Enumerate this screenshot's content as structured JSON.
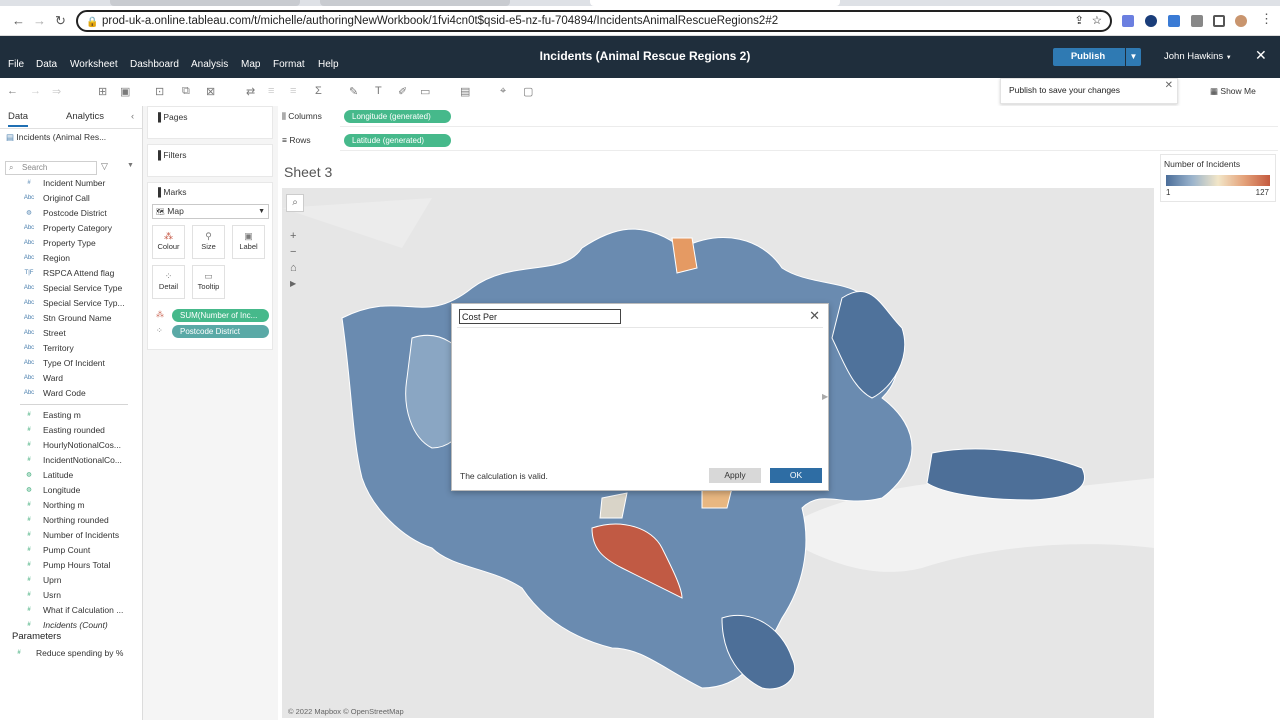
{
  "browser": {
    "url": "prod-uk-a.online.tableau.com/t/michelle/authoringNewWorkbook/1fvi4cn0t$qsid-e5-nz-fu-704894/IncidentsAnimalRescueRegions2#2"
  },
  "app": {
    "menus": [
      "File",
      "Data",
      "Worksheet",
      "Dashboard",
      "Analysis",
      "Map",
      "Format",
      "Help"
    ],
    "title": "Incidents (Animal Rescue Regions 2)",
    "publish_label": "Publish",
    "user_name": "John Hawkins",
    "publish_tooltip": "Publish to save your changes",
    "show_me_label": "Show Me"
  },
  "data_pane": {
    "tab_data": "Data",
    "tab_analytics": "Analytics",
    "datasource": "Incidents (Animal Res...",
    "search_placeholder": "Search",
    "dimensions": [
      {
        "icon": "#",
        "name": "Incident Number"
      },
      {
        "icon": "Abc",
        "name": "Originof Call"
      },
      {
        "icon": "globe",
        "name": "Postcode District"
      },
      {
        "icon": "Abc",
        "name": "Property Category"
      },
      {
        "icon": "Abc",
        "name": "Property Type"
      },
      {
        "icon": "Abc",
        "name": "Region"
      },
      {
        "icon": "T|F",
        "name": "RSPCA Attend flag"
      },
      {
        "icon": "Abc",
        "name": "Special Service Type"
      },
      {
        "icon": "Abc",
        "name": "Special Service Typ..."
      },
      {
        "icon": "Abc",
        "name": "Stn Ground Name"
      },
      {
        "icon": "Abc",
        "name": "Street"
      },
      {
        "icon": "Abc",
        "name": "Territory"
      },
      {
        "icon": "Abc",
        "name": "Type Of Incident"
      },
      {
        "icon": "Abc",
        "name": "Ward"
      },
      {
        "icon": "Abc",
        "name": "Ward Code"
      }
    ],
    "measures": [
      {
        "icon": "#",
        "name": "Easting m"
      },
      {
        "icon": "#",
        "name": "Easting rounded"
      },
      {
        "icon": "#",
        "name": "HourlyNotionalCos..."
      },
      {
        "icon": "#",
        "name": "IncidentNotionalCo..."
      },
      {
        "icon": "globe",
        "name": "Latitude"
      },
      {
        "icon": "globe",
        "name": "Longitude"
      },
      {
        "icon": "#",
        "name": "Northing m"
      },
      {
        "icon": "#",
        "name": "Northing rounded"
      },
      {
        "icon": "#",
        "name": "Number of Incidents"
      },
      {
        "icon": "#",
        "name": "Pump Count"
      },
      {
        "icon": "#",
        "name": "Pump Hours Total"
      },
      {
        "icon": "#",
        "name": "Uprn"
      },
      {
        "icon": "#",
        "name": "Usrn"
      },
      {
        "icon": "#",
        "name": "What if Calculation ..."
      },
      {
        "icon": "#",
        "name": "Incidents (Count)"
      }
    ],
    "parameters_header": "Parameters",
    "parameters": [
      {
        "icon": "#",
        "name": "Reduce spending by %"
      }
    ]
  },
  "cards": {
    "pages": "Pages",
    "filters": "Filters",
    "marks": "Marks",
    "mark_type": "Map",
    "buttons": {
      "colour": "Colour",
      "size": "Size",
      "label": "Label",
      "detail": "Detail",
      "tooltip": "Tooltip"
    },
    "pill_colour": "SUM(Number of Inc...",
    "pill_detail": "Postcode District"
  },
  "shelves": {
    "columns_label": "Columns",
    "columns_pill": "Longitude (generated)",
    "rows_label": "Rows",
    "rows_pill": "Latitude (generated)"
  },
  "sheet": {
    "title": "Sheet 3",
    "attribution": "© 2022 Mapbox  © OpenStreetMap"
  },
  "legend": {
    "title": "Number of Incidents",
    "min": "1",
    "max": "127",
    "colors": [
      "#4b6e9a",
      "#9ab3cc",
      "#f2e6c8",
      "#e4a27a",
      "#c45a3f"
    ]
  },
  "calc_dialog": {
    "name": "Cost Per",
    "status": "The calculation is valid.",
    "apply_label": "Apply",
    "ok_label": "OK"
  }
}
